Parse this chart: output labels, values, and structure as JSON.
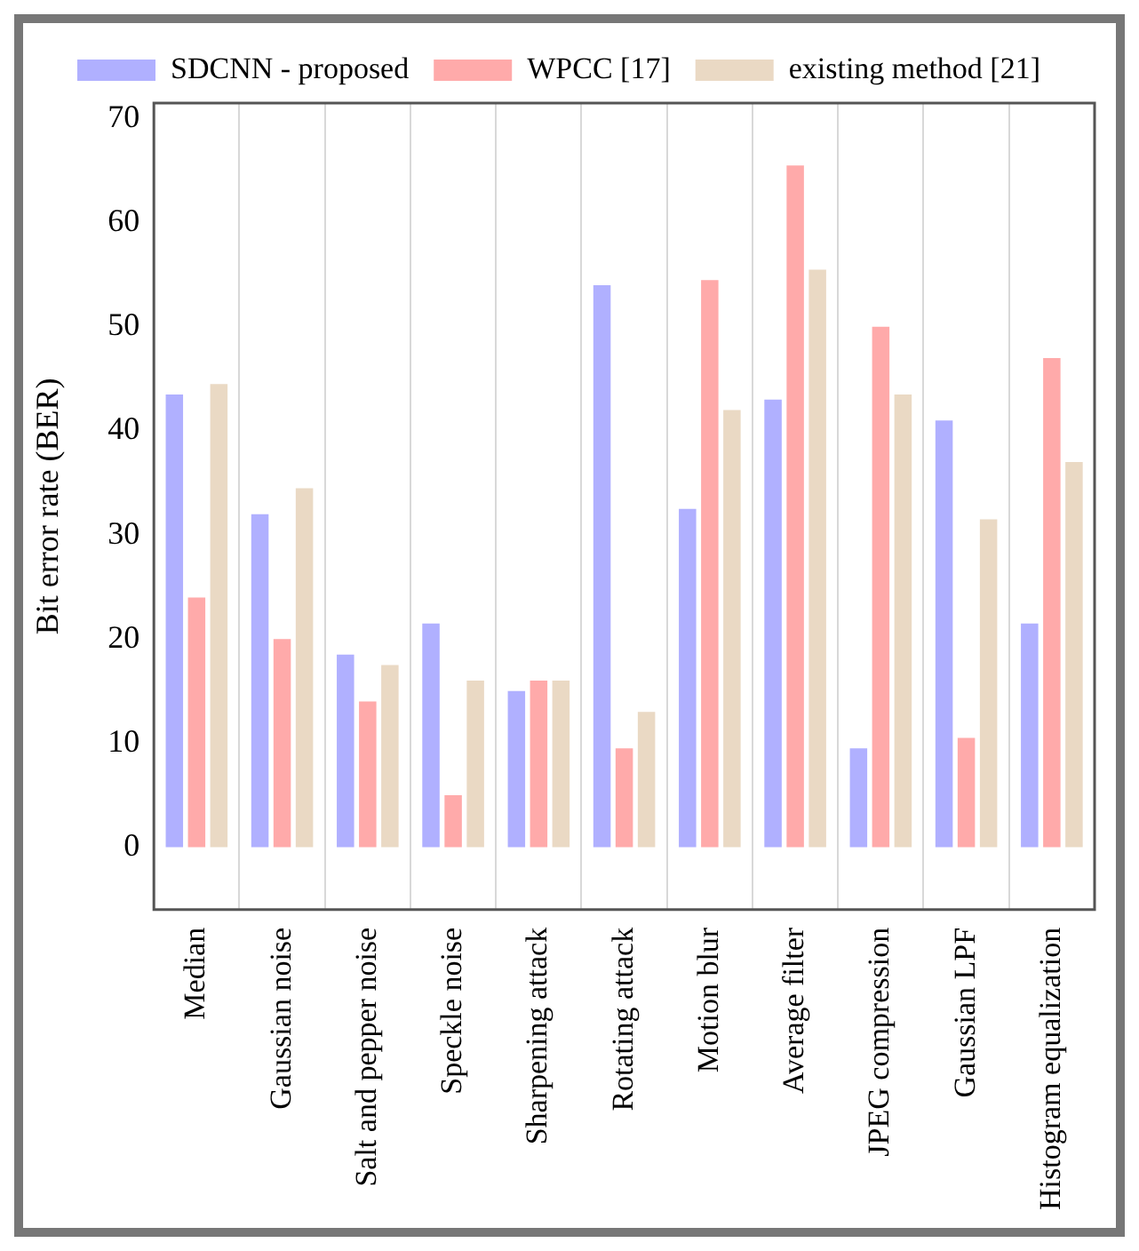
{
  "chart_data": {
    "type": "bar",
    "ylabel": "Bit error rate (BER)",
    "categories": [
      "Median",
      "Gaussian noise",
      "Salt and pepper noise",
      "Speckle noise",
      "Sharpening attack",
      "Rotating attack",
      "Motion blur",
      "Average filter",
      "JPEG compression",
      "Gaussian LPF",
      "Histogram equalization"
    ],
    "series": [
      {
        "name": "SDCNN - proposed",
        "color": "#b0b0ff",
        "values": [
          43.5,
          32,
          18.5,
          21.5,
          15,
          54,
          32.5,
          43,
          9.5,
          41,
          21.5
        ]
      },
      {
        "name": "WPCC [17]",
        "color": "#ffaaaa",
        "values": [
          24,
          20,
          14,
          5,
          16,
          9.5,
          54.5,
          65.5,
          50,
          10.5,
          47
        ]
      },
      {
        "name": "existing method [21]",
        "color": "#ead9c4",
        "values": [
          44.5,
          34.5,
          17.5,
          16,
          16,
          13,
          42,
          55.5,
          43.5,
          31.5,
          37
        ]
      }
    ],
    "ylim": [
      -6,
      71.5
    ],
    "yticks": [
      0,
      10,
      20,
      30,
      40,
      50,
      60,
      70
    ],
    "grid": "x",
    "legend": "top"
  }
}
